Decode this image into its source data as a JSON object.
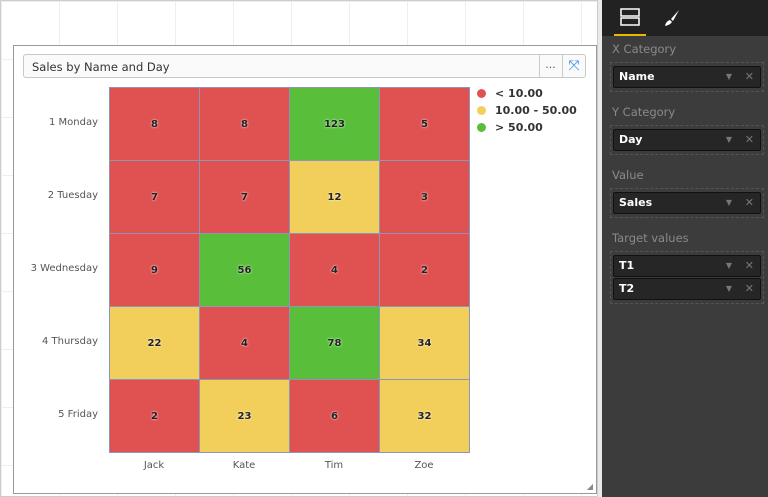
{
  "visual": {
    "title": "Sales by Name and Day",
    "more_label": "...",
    "expand_icon": "expand-icon"
  },
  "chart_data": {
    "type": "heatmap",
    "x_categories": [
      "Jack",
      "Kate",
      "Tim",
      "Zoe"
    ],
    "y_categories": [
      "1 Monday",
      "2 Tuesday",
      "3 Wednesday",
      "4 Thursday",
      "5 Friday"
    ],
    "values": [
      [
        8,
        8,
        123,
        5
      ],
      [
        7,
        7,
        12,
        3
      ],
      [
        9,
        56,
        4,
        2
      ],
      [
        22,
        4,
        78,
        34
      ],
      [
        2,
        23,
        6,
        32
      ]
    ],
    "legend": [
      {
        "label": "< 10.00",
        "color": "#e05252",
        "max": 10
      },
      {
        "label": "10.00 - 50.00",
        "color": "#f2cf5b",
        "max": 50
      },
      {
        "label": "> 50.00",
        "color": "#59bf3b",
        "max": null
      }
    ],
    "legend_position": "top-right"
  },
  "panel": {
    "tabs": [
      {
        "icon": "fields-icon",
        "active": true
      },
      {
        "icon": "paintbrush-icon",
        "active": false
      }
    ],
    "sections": [
      {
        "label": "X Category",
        "fields": [
          "Name"
        ]
      },
      {
        "label": "Y Category",
        "fields": [
          "Day"
        ]
      },
      {
        "label": "Value",
        "fields": [
          "Sales"
        ]
      },
      {
        "label": "Target values",
        "fields": [
          "T1",
          "T2"
        ]
      }
    ]
  }
}
